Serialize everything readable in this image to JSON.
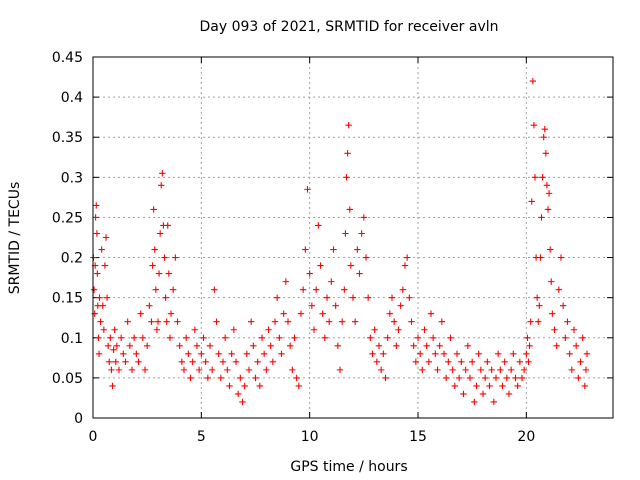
{
  "chart_data": {
    "type": "scatter",
    "title": "Day 093 of 2021, SRMTID for receiver avln",
    "xlabel": "GPS time / hours",
    "ylabel": "SRMTID / TECUs",
    "xlim": [
      0,
      24
    ],
    "ylim": [
      0,
      0.45
    ],
    "xticks": [
      0,
      5,
      10,
      15,
      20
    ],
    "yticks": [
      0,
      0.05,
      0.1,
      0.15,
      0.2,
      0.25,
      0.3,
      0.35,
      0.4,
      0.45
    ],
    "xtick_labels": [
      "0",
      "5",
      "10",
      "15",
      "20"
    ],
    "ytick_labels": [
      "0",
      "0.05",
      "0.1",
      "0.15",
      "0.2",
      "0.25",
      "0.3",
      "0.35",
      "0.4",
      "0.45"
    ],
    "grid": true,
    "marker": "+",
    "color": "#ff0000",
    "series": [
      {
        "name": "SRMTID",
        "points": [
          [
            0.02,
            0.2
          ],
          [
            0.05,
            0.16
          ],
          [
            0.08,
            0.13
          ],
          [
            0.1,
            0.19
          ],
          [
            0.12,
            0.25
          ],
          [
            0.15,
            0.265
          ],
          [
            0.18,
            0.23
          ],
          [
            0.2,
            0.18
          ],
          [
            0.22,
            0.14
          ],
          [
            0.25,
            0.1
          ],
          [
            0.28,
            0.08
          ],
          [
            0.3,
            0.15
          ],
          [
            0.35,
            0.12
          ],
          [
            0.4,
            0.21
          ],
          [
            0.45,
            0.14
          ],
          [
            0.5,
            0.11
          ],
          [
            0.55,
            0.19
          ],
          [
            0.6,
            0.225
          ],
          [
            0.65,
            0.15
          ],
          [
            0.7,
            0.09
          ],
          [
            0.75,
            0.07
          ],
          [
            0.8,
            0.1
          ],
          [
            0.85,
            0.06
          ],
          [
            0.9,
            0.04
          ],
          [
            0.95,
            0.085
          ],
          [
            1.0,
            0.11
          ],
          [
            1.05,
            0.07
          ],
          [
            1.1,
            0.09
          ],
          [
            1.2,
            0.06
          ],
          [
            1.3,
            0.1
          ],
          [
            1.4,
            0.08
          ],
          [
            1.5,
            0.07
          ],
          [
            1.6,
            0.12
          ],
          [
            1.7,
            0.09
          ],
          [
            1.8,
            0.06
          ],
          [
            1.9,
            0.1
          ],
          [
            2.0,
            0.08
          ],
          [
            2.1,
            0.07
          ],
          [
            2.2,
            0.13
          ],
          [
            2.3,
            0.1
          ],
          [
            2.4,
            0.06
          ],
          [
            2.5,
            0.09
          ],
          [
            2.6,
            0.14
          ],
          [
            2.7,
            0.12
          ],
          [
            2.75,
            0.19
          ],
          [
            2.8,
            0.26
          ],
          [
            2.85,
            0.21
          ],
          [
            2.9,
            0.16
          ],
          [
            2.95,
            0.11
          ],
          [
            3.0,
            0.12
          ],
          [
            3.05,
            0.18
          ],
          [
            3.1,
            0.23
          ],
          [
            3.15,
            0.29
          ],
          [
            3.2,
            0.305
          ],
          [
            3.25,
            0.24
          ],
          [
            3.3,
            0.2
          ],
          [
            3.35,
            0.15
          ],
          [
            3.4,
            0.12
          ],
          [
            3.45,
            0.24
          ],
          [
            3.5,
            0.18
          ],
          [
            3.55,
            0.1
          ],
          [
            3.6,
            0.13
          ],
          [
            3.7,
            0.16
          ],
          [
            3.8,
            0.2
          ],
          [
            3.9,
            0.12
          ],
          [
            4.0,
            0.09
          ],
          [
            4.1,
            0.07
          ],
          [
            4.2,
            0.06
          ],
          [
            4.3,
            0.1
          ],
          [
            4.4,
            0.08
          ],
          [
            4.5,
            0.05
          ],
          [
            4.6,
            0.07
          ],
          [
            4.7,
            0.11
          ],
          [
            4.8,
            0.09
          ],
          [
            4.9,
            0.06
          ],
          [
            5.0,
            0.08
          ],
          [
            5.1,
            0.1
          ],
          [
            5.2,
            0.07
          ],
          [
            5.3,
            0.05
          ],
          [
            5.4,
            0.09
          ],
          [
            5.5,
            0.06
          ],
          [
            5.6,
            0.16
          ],
          [
            5.7,
            0.12
          ],
          [
            5.8,
            0.08
          ],
          [
            5.9,
            0.05
          ],
          [
            6.0,
            0.07
          ],
          [
            6.1,
            0.1
          ],
          [
            6.2,
            0.06
          ],
          [
            6.3,
            0.04
          ],
          [
            6.4,
            0.08
          ],
          [
            6.5,
            0.11
          ],
          [
            6.6,
            0.07
          ],
          [
            6.7,
            0.03
          ],
          [
            6.8,
            0.05
          ],
          [
            6.9,
            0.02
          ],
          [
            7.0,
            0.04
          ],
          [
            7.1,
            0.08
          ],
          [
            7.2,
            0.06
          ],
          [
            7.3,
            0.12
          ],
          [
            7.4,
            0.09
          ],
          [
            7.5,
            0.05
          ],
          [
            7.6,
            0.07
          ],
          [
            7.7,
            0.04
          ],
          [
            7.8,
            0.1
          ],
          [
            7.9,
            0.08
          ],
          [
            8.0,
            0.06
          ],
          [
            8.1,
            0.11
          ],
          [
            8.2,
            0.09
          ],
          [
            8.3,
            0.07
          ],
          [
            8.4,
            0.12
          ],
          [
            8.5,
            0.15
          ],
          [
            8.6,
            0.1
          ],
          [
            8.7,
            0.08
          ],
          [
            8.8,
            0.13
          ],
          [
            8.9,
            0.17
          ],
          [
            9.0,
            0.12
          ],
          [
            9.1,
            0.09
          ],
          [
            9.2,
            0.06
          ],
          [
            9.3,
            0.1
          ],
          [
            9.4,
            0.05
          ],
          [
            9.5,
            0.04
          ],
          [
            9.6,
            0.13
          ],
          [
            9.7,
            0.16
          ],
          [
            9.8,
            0.21
          ],
          [
            9.9,
            0.285
          ],
          [
            10.0,
            0.18
          ],
          [
            10.1,
            0.14
          ],
          [
            10.2,
            0.11
          ],
          [
            10.3,
            0.16
          ],
          [
            10.4,
            0.24
          ],
          [
            10.5,
            0.19
          ],
          [
            10.6,
            0.13
          ],
          [
            10.7,
            0.1
          ],
          [
            10.8,
            0.15
          ],
          [
            10.9,
            0.12
          ],
          [
            11.0,
            0.17
          ],
          [
            11.1,
            0.21
          ],
          [
            11.2,
            0.14
          ],
          [
            11.3,
            0.09
          ],
          [
            11.4,
            0.06
          ],
          [
            11.5,
            0.12
          ],
          [
            11.6,
            0.16
          ],
          [
            11.65,
            0.23
          ],
          [
            11.7,
            0.3
          ],
          [
            11.75,
            0.33
          ],
          [
            11.8,
            0.365
          ],
          [
            11.85,
            0.26
          ],
          [
            11.9,
            0.19
          ],
          [
            12.0,
            0.15
          ],
          [
            12.1,
            0.12
          ],
          [
            12.2,
            0.21
          ],
          [
            12.3,
            0.18
          ],
          [
            12.4,
            0.23
          ],
          [
            12.5,
            0.25
          ],
          [
            12.6,
            0.2
          ],
          [
            12.7,
            0.15
          ],
          [
            12.8,
            0.1
          ],
          [
            12.9,
            0.08
          ],
          [
            13.0,
            0.11
          ],
          [
            13.1,
            0.07
          ],
          [
            13.2,
            0.09
          ],
          [
            13.3,
            0.06
          ],
          [
            13.4,
            0.08
          ],
          [
            13.5,
            0.05
          ],
          [
            13.6,
            0.1
          ],
          [
            13.7,
            0.13
          ],
          [
            13.8,
            0.15
          ],
          [
            13.9,
            0.12
          ],
          [
            14.0,
            0.09
          ],
          [
            14.1,
            0.11
          ],
          [
            14.2,
            0.14
          ],
          [
            14.3,
            0.16
          ],
          [
            14.4,
            0.19
          ],
          [
            14.5,
            0.2
          ],
          [
            14.6,
            0.15
          ],
          [
            14.7,
            0.12
          ],
          [
            14.8,
            0.09
          ],
          [
            14.9,
            0.07
          ],
          [
            15.0,
            0.1
          ],
          [
            15.1,
            0.08
          ],
          [
            15.2,
            0.06
          ],
          [
            15.3,
            0.11
          ],
          [
            15.4,
            0.09
          ],
          [
            15.5,
            0.07
          ],
          [
            15.6,
            0.13
          ],
          [
            15.7,
            0.1
          ],
          [
            15.8,
            0.08
          ],
          [
            15.9,
            0.06
          ],
          [
            16.0,
            0.09
          ],
          [
            16.1,
            0.12
          ],
          [
            16.2,
            0.08
          ],
          [
            16.3,
            0.05
          ],
          [
            16.4,
            0.07
          ],
          [
            16.5,
            0.1
          ],
          [
            16.6,
            0.06
          ],
          [
            16.7,
            0.04
          ],
          [
            16.8,
            0.08
          ],
          [
            16.9,
            0.05
          ],
          [
            17.0,
            0.07
          ],
          [
            17.1,
            0.03
          ],
          [
            17.2,
            0.06
          ],
          [
            17.3,
            0.09
          ],
          [
            17.4,
            0.05
          ],
          [
            17.5,
            0.07
          ],
          [
            17.6,
            0.02
          ],
          [
            17.7,
            0.04
          ],
          [
            17.8,
            0.08
          ],
          [
            17.9,
            0.06
          ],
          [
            18.0,
            0.03
          ],
          [
            18.1,
            0.05
          ],
          [
            18.2,
            0.07
          ],
          [
            18.3,
            0.04
          ],
          [
            18.4,
            0.06
          ],
          [
            18.5,
            0.02
          ],
          [
            18.6,
            0.05
          ],
          [
            18.7,
            0.08
          ],
          [
            18.8,
            0.06
          ],
          [
            18.9,
            0.04
          ],
          [
            19.0,
            0.07
          ],
          [
            19.1,
            0.05
          ],
          [
            19.2,
            0.03
          ],
          [
            19.3,
            0.06
          ],
          [
            19.4,
            0.08
          ],
          [
            19.5,
            0.05
          ],
          [
            19.6,
            0.04
          ],
          [
            19.7,
            0.07
          ],
          [
            19.8,
            0.05
          ],
          [
            19.9,
            0.06
          ],
          [
            20.0,
            0.08
          ],
          [
            20.05,
            0.1
          ],
          [
            20.1,
            0.07
          ],
          [
            20.15,
            0.09
          ],
          [
            20.2,
            0.12
          ],
          [
            20.25,
            0.27
          ],
          [
            20.3,
            0.42
          ],
          [
            20.35,
            0.365
          ],
          [
            20.4,
            0.3
          ],
          [
            20.45,
            0.2
          ],
          [
            20.5,
            0.15
          ],
          [
            20.55,
            0.12
          ],
          [
            20.6,
            0.14
          ],
          [
            20.65,
            0.2
          ],
          [
            20.7,
            0.25
          ],
          [
            20.75,
            0.3
          ],
          [
            20.8,
            0.35
          ],
          [
            20.85,
            0.36
          ],
          [
            20.9,
            0.33
          ],
          [
            20.95,
            0.29
          ],
          [
            21.0,
            0.26
          ],
          [
            21.05,
            0.28
          ],
          [
            21.1,
            0.21
          ],
          [
            21.15,
            0.17
          ],
          [
            21.2,
            0.13
          ],
          [
            21.3,
            0.11
          ],
          [
            21.4,
            0.09
          ],
          [
            21.5,
            0.16
          ],
          [
            21.6,
            0.2
          ],
          [
            21.7,
            0.14
          ],
          [
            21.8,
            0.1
          ],
          [
            21.9,
            0.12
          ],
          [
            22.0,
            0.08
          ],
          [
            22.1,
            0.06
          ],
          [
            22.2,
            0.11
          ],
          [
            22.3,
            0.09
          ],
          [
            22.4,
            0.05
          ],
          [
            22.5,
            0.07
          ],
          [
            22.6,
            0.1
          ],
          [
            22.7,
            0.04
          ],
          [
            22.75,
            0.06
          ],
          [
            22.8,
            0.08
          ]
        ]
      }
    ]
  }
}
